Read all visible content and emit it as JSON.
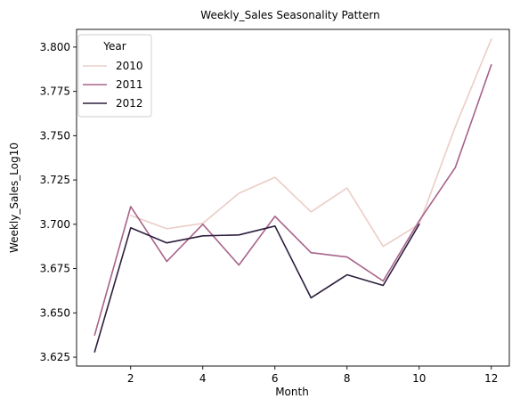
{
  "chart_data": {
    "type": "line",
    "title": "Weekly_Sales Seasonality Pattern",
    "xlabel": "Month",
    "ylabel": "Weekly_Sales_Log10",
    "xlim": [
      0.5,
      12.5
    ],
    "ylim": [
      3.62,
      3.81
    ],
    "xticks": [
      "2",
      "4",
      "6",
      "8",
      "10",
      "12"
    ],
    "yticks": [
      "3.625",
      "3.650",
      "3.675",
      "3.700",
      "3.725",
      "3.750",
      "3.775",
      "3.800"
    ],
    "legend": {
      "title": "Year",
      "position": "top-left"
    },
    "series": [
      {
        "name": "2010",
        "color": "#ebcdc6",
        "x": [
          2,
          3,
          4,
          5,
          6,
          7,
          8,
          9,
          10,
          11,
          12
        ],
        "y": [
          3.705,
          3.6975,
          3.7005,
          3.7175,
          3.7265,
          3.707,
          3.7205,
          3.6875,
          3.7,
          3.755,
          3.8045
        ]
      },
      {
        "name": "2011",
        "color": "#a8628a",
        "x": [
          1,
          2,
          3,
          4,
          5,
          6,
          7,
          8,
          9,
          10,
          11,
          12
        ],
        "y": [
          3.6375,
          3.71,
          3.679,
          3.7,
          3.677,
          3.7045,
          3.684,
          3.6815,
          3.668,
          3.702,
          3.732,
          3.79
        ]
      },
      {
        "name": "2012",
        "color": "#2d1e3e",
        "x": [
          1,
          2,
          3,
          4,
          5,
          6,
          7,
          8,
          9,
          10
        ],
        "y": [
          3.628,
          3.698,
          3.6895,
          3.6935,
          3.694,
          3.699,
          3.6585,
          3.6715,
          3.6655,
          3.7
        ]
      }
    ]
  }
}
